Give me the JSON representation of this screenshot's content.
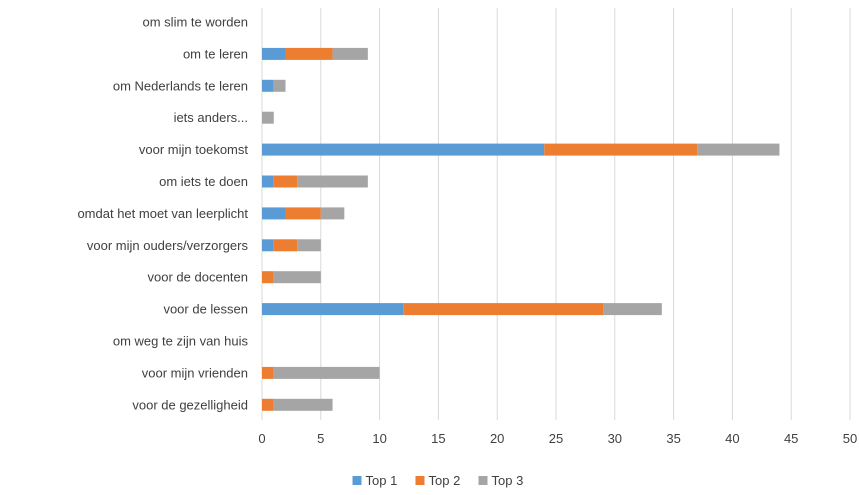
{
  "chart_data": {
    "type": "bar",
    "orientation": "horizontal",
    "stacked": true,
    "categories": [
      "om slim te worden",
      "om te leren",
      "om Nederlands te leren",
      "iets anders...",
      "voor mijn toekomst",
      "om iets te doen",
      "omdat het moet van leerplicht",
      "voor mijn ouders/verzorgers",
      "voor de docenten",
      "voor de lessen",
      "om weg te zijn van huis",
      "voor mijn vrienden",
      "voor de gezelligheid"
    ],
    "series": [
      {
        "name": "Top 1",
        "color": "#5B9BD5",
        "values": [
          0,
          2,
          1,
          0,
          24,
          1,
          2,
          1,
          0,
          12,
          0,
          0,
          0
        ]
      },
      {
        "name": "Top 2",
        "color": "#ED7D31",
        "values": [
          0,
          4,
          0,
          0,
          13,
          2,
          3,
          2,
          1,
          17,
          0,
          1,
          1
        ]
      },
      {
        "name": "Top 3",
        "color": "#A5A5A5",
        "values": [
          0,
          3,
          1,
          1,
          7,
          6,
          2,
          2,
          4,
          5,
          0,
          9,
          5
        ]
      }
    ],
    "xlim": [
      0,
      50
    ],
    "xticks": [
      "0",
      "5",
      "10",
      "15",
      "20",
      "25",
      "30",
      "35",
      "40",
      "45",
      "50"
    ],
    "grid": "vertical",
    "legend": "bottom"
  }
}
